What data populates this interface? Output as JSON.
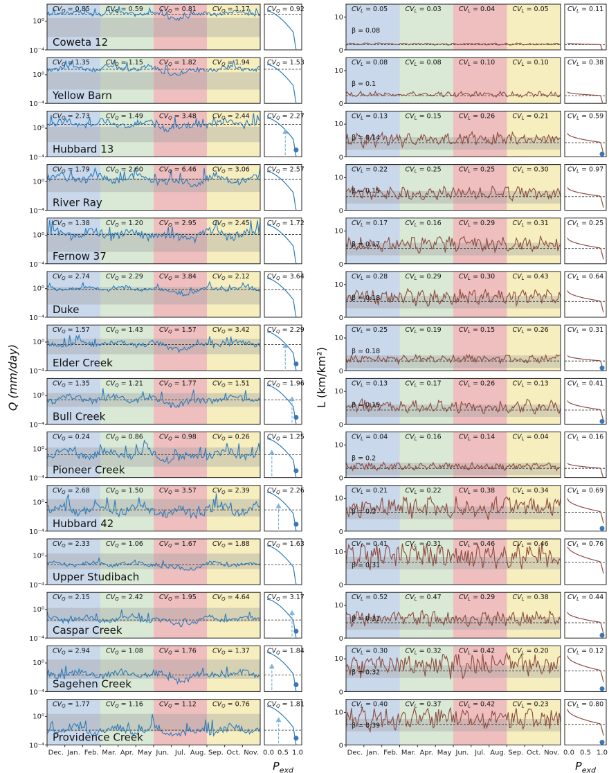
{
  "figure": {
    "ylabel_left": "Q (mm/day)",
    "ylabel_right": "L (km/km²)",
    "xlabel_small": "P",
    "xlabel_small_sub": "exd",
    "month_labels": [
      "Dec.",
      "Jan.",
      "Feb.",
      "Mar.",
      "Apr.",
      "May",
      "Jun.",
      "Jul.",
      "Aug.",
      "Sep.",
      "Oct.",
      "Nov."
    ],
    "pexd_ticks": [
      "0.0",
      "0.5",
      "1.0"
    ],
    "pexd_ticks_right": [
      "0.0",
      "0.5",
      "1.0"
    ],
    "q_yticks": [
      "10⁰",
      "10⁻⁴"
    ],
    "q_ytick_top_first": "10⁰",
    "l_yticks": [
      "10",
      "0"
    ],
    "cv_q_prefix": "CV",
    "cv_q_sub": "Q",
    "cv_l_sub": "L",
    "beta_prefix": "β = ",
    "season_colors": [
      "#c9d8ea",
      "#d9e9d6",
      "#efbfbf",
      "#f6eebf"
    ],
    "q_color": "#2b7bba",
    "l_color": "#8b4a3e",
    "marker_color": "#7fb3de",
    "dot_color": "#3a77b5"
  },
  "chart_data": {
    "type": "line",
    "x_axis": "month (Dec.–Nov.)",
    "sites": [
      {
        "name": "Coweta 12",
        "cvq": [
          "0.85",
          "0.59",
          "0.81",
          "1.17"
        ],
        "cvq_total": "0.92",
        "cvl": [
          "0.05",
          "0.03",
          "0.04",
          "0.05"
        ],
        "cvl_total": "0.11",
        "beta": "0.08"
      },
      {
        "name": "Yellow Barn",
        "cvq": [
          "1.35",
          "1.15",
          "1.82",
          "1.94"
        ],
        "cvq_total": "1.53",
        "cvl": [
          "0.08",
          "0.08",
          "0.10",
          "0.10"
        ],
        "cvl_total": "0.38",
        "beta": "0.1"
      },
      {
        "name": "Hubbard 13",
        "cvq": [
          "2.73",
          "1.49",
          "3.48",
          "2.44"
        ],
        "cvq_total": "2.27",
        "cvl": [
          "0.13",
          "0.15",
          "0.26",
          "0.21"
        ],
        "cvl_total": "0.59",
        "beta": "0.14"
      },
      {
        "name": "River Ray",
        "cvq": [
          "1.79",
          "2.60",
          "6.46",
          "3.06"
        ],
        "cvq_total": "2.57",
        "cvl": [
          "0.22",
          "0.25",
          "0.25",
          "0.30"
        ],
        "cvl_total": "0.97",
        "beta": "0.15"
      },
      {
        "name": "Fernow 37",
        "cvq": [
          "1.38",
          "1.20",
          "2.95",
          "2.45"
        ],
        "cvq_total": "1.72",
        "cvl": [
          "0.17",
          "0.16",
          "0.29",
          "0.31"
        ],
        "cvl_total": "0.25",
        "beta": "0.17"
      },
      {
        "name": "Duke",
        "cvq": [
          "2.74",
          "2.29",
          "3.84",
          "2.12"
        ],
        "cvq_total": "3.64",
        "cvl": [
          "0.28",
          "0.29",
          "0.30",
          "0.43"
        ],
        "cvl_total": "0.64",
        "beta": "0.18"
      },
      {
        "name": "Elder Creek",
        "cvq": [
          "1.57",
          "1.43",
          "1.57",
          "3.42"
        ],
        "cvq_total": "2.29",
        "cvl": [
          "0.25",
          "0.19",
          "0.15",
          "0.26"
        ],
        "cvl_total": "0.31",
        "beta": "0.18"
      },
      {
        "name": "Bull Creek",
        "cvq": [
          "1.35",
          "1.21",
          "1.77",
          "1.51"
        ],
        "cvq_total": "1.96",
        "cvl": [
          "0.13",
          "0.17",
          "0.26",
          "0.13"
        ],
        "cvl_total": "0.41",
        "beta": "0.19"
      },
      {
        "name": "Pioneer Creek",
        "cvq": [
          "0.24",
          "0.86",
          "0.98",
          "0.26"
        ],
        "cvq_total": "1.25",
        "cvl": [
          "0.04",
          "0.16",
          "0.14",
          "0.04"
        ],
        "cvl_total": "0.16",
        "beta": "0.2"
      },
      {
        "name": "Hubbard 42",
        "cvq": [
          "2.68",
          "1.50",
          "3.57",
          "2.39"
        ],
        "cvq_total": "2.26",
        "cvl": [
          "0.21",
          "0.22",
          "0.38",
          "0.34"
        ],
        "cvl_total": "0.69",
        "beta": "0.2"
      },
      {
        "name": "Upper Studibach",
        "cvq": [
          "2.33",
          "1.06",
          "1.67",
          "1.88"
        ],
        "cvq_total": "1.63",
        "cvl": [
          "0.41",
          "0.31",
          "0.46",
          "0.46"
        ],
        "cvl_total": "0.76",
        "beta": "0.31"
      },
      {
        "name": "Caspar Creek",
        "cvq": [
          "2.15",
          "2.42",
          "1.95",
          "4.64"
        ],
        "cvq_total": "3.17",
        "cvl": [
          "0.52",
          "0.47",
          "0.29",
          "0.38"
        ],
        "cvl_total": "0.44",
        "beta": "0.31"
      },
      {
        "name": "Sagehen Creek",
        "cvq": [
          "2.94",
          "1.08",
          "1.76",
          "1.37"
        ],
        "cvq_total": "1.84",
        "cvl": [
          "0.30",
          "0.32",
          "0.42",
          "0.20"
        ],
        "cvl_total": "0.12",
        "beta": "0.32"
      },
      {
        "name": "Providence Creek",
        "cvq": [
          "1.77",
          "1.16",
          "1.12",
          "0.76"
        ],
        "cvq_total": "1.81",
        "cvl": [
          "0.40",
          "0.37",
          "0.42",
          "0.23"
        ],
        "cvl_total": "0.80",
        "beta": "0.39"
      }
    ],
    "q_ylim": [
      "10⁻⁴",
      "10⁰+"
    ],
    "l_ylim": [
      0,
      15
    ],
    "pexd_xlim": [
      0,
      1
    ],
    "grid": false
  }
}
